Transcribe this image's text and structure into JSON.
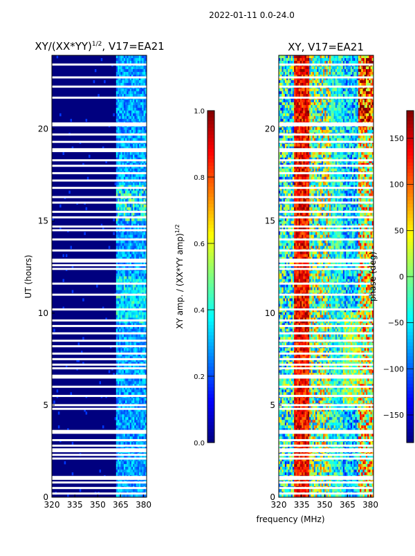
{
  "suptitle": "2022-01-11 0.0-24.0",
  "colors": {
    "jet": [
      "#00007f",
      "#0000ff",
      "#007fff",
      "#00ffff",
      "#7fff7f",
      "#ffff00",
      "#ff7f00",
      "#ff0000",
      "#7f0000"
    ],
    "background": "#00007f",
    "flag": "#ffffff"
  },
  "chart_data": [
    {
      "type": "heatmap",
      "title_main": "XY/(XX*YY)",
      "title_sup": "1/2",
      "title_tail": ", V17=EA21",
      "xlabel": "",
      "ylabel": "UT (hours)",
      "xlim": [
        320,
        382
      ],
      "ylim": [
        0,
        24
      ],
      "xticks": [
        320,
        335,
        350,
        365,
        380
      ],
      "yticks": [
        0,
        5,
        10,
        15,
        20
      ],
      "colorbar": {
        "label_main": "XY amp. / (XX*YY amp)",
        "label_sup": "1/2",
        "range": [
          0.0,
          1.0
        ],
        "ticks": [
          "0.0",
          "0.2",
          "0.4",
          "0.6",
          "0.8",
          "1.0"
        ]
      }
    },
    {
      "type": "heatmap",
      "title_main": "XY, V17=EA21",
      "title_sup": "",
      "title_tail": "",
      "xlabel": "frequency (MHz)",
      "ylabel": "",
      "xlim": [
        320,
        382
      ],
      "ylim": [
        0,
        24
      ],
      "xticks": [
        320,
        335,
        350,
        365,
        380
      ],
      "yticks": [
        0,
        5,
        10,
        15,
        20
      ],
      "colorbar": {
        "label_main": "phase (deg)",
        "label_sup": "",
        "range": [
          -180,
          180
        ],
        "ticks": [
          "−150",
          "−100",
          "−50",
          "0",
          "50",
          "100",
          "150"
        ],
        "tick_values": [
          -150,
          -100,
          -50,
          0,
          50,
          100,
          150
        ]
      }
    }
  ],
  "flagged_hours": [
    0.2,
    0.5,
    0.8,
    1.0,
    1.1,
    2.1,
    2.3,
    2.5,
    2.6,
    2.8,
    3.1,
    3.5,
    3.6,
    4.8,
    5.0,
    5.5,
    6.0,
    6.5,
    6.6,
    7.0,
    7.2,
    7.5,
    7.8,
    8.2,
    8.5,
    8.9,
    9.3,
    9.6,
    10.2,
    11.0,
    11.6,
    12.4,
    12.6,
    12.8,
    12.9,
    13.4,
    14.0,
    14.5,
    14.7,
    15.2,
    15.5,
    16.0,
    16.3,
    16.8,
    17.2,
    17.6,
    18.0,
    18.3,
    18.8,
    18.9,
    19.3,
    19.7,
    20.2,
    20.3,
    21.7,
    22.3,
    22.8,
    23.5
  ]
}
